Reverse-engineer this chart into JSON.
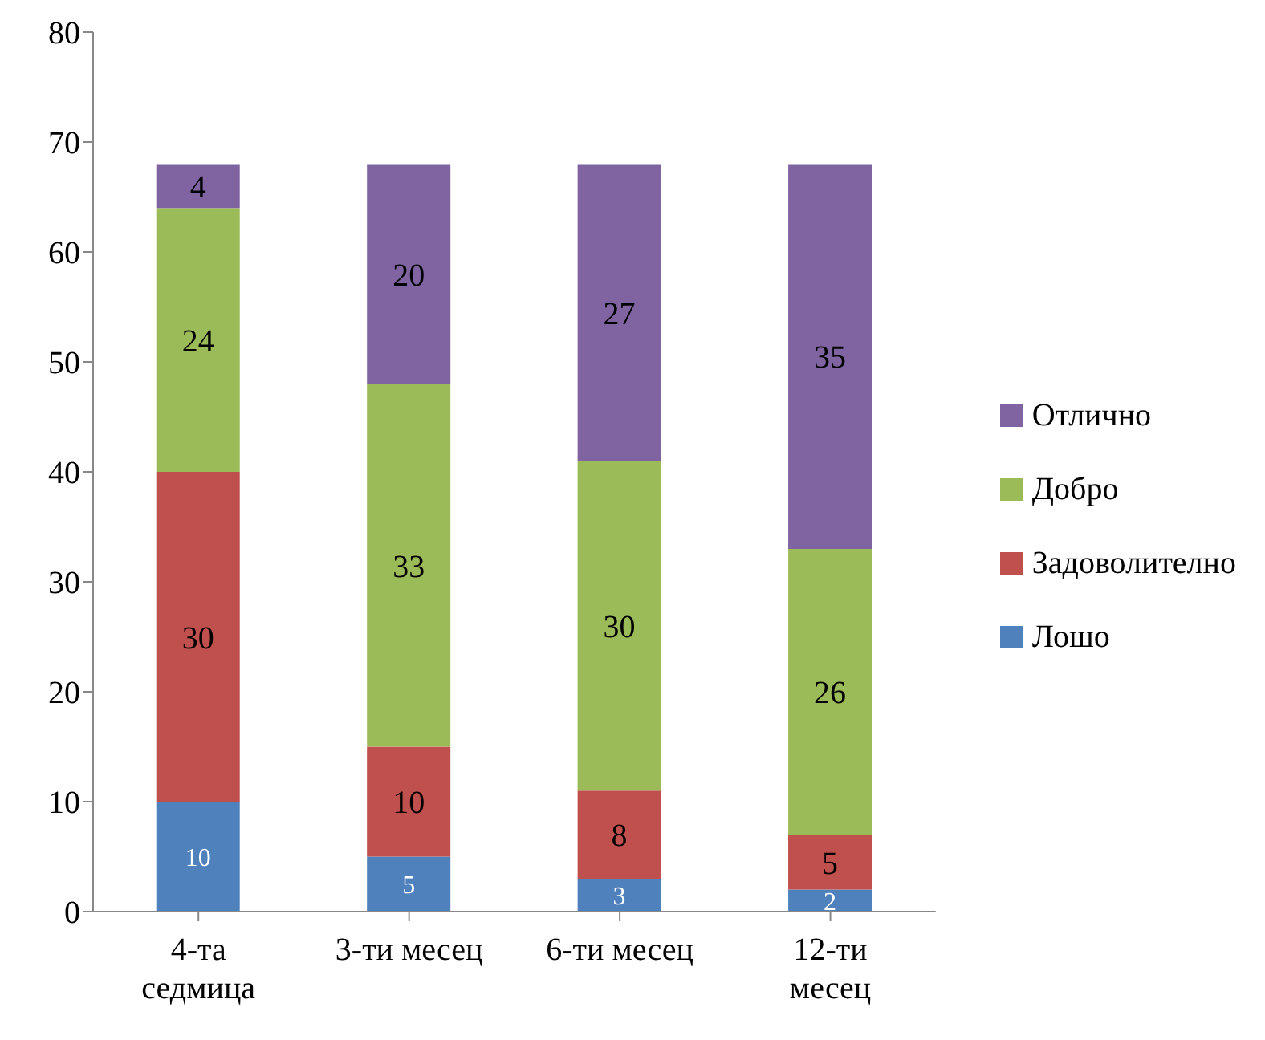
{
  "chart_data": {
    "type": "bar",
    "stacked": true,
    "categories": [
      "4-та седмица",
      "3-ти месец",
      "6-ти месец",
      "12-ти месец"
    ],
    "series": [
      {
        "name": "Лошо",
        "color": "#4f81bd",
        "values": [
          10,
          5,
          3,
          2
        ]
      },
      {
        "name": "Задоволително",
        "color": "#c0504d",
        "values": [
          30,
          10,
          8,
          5
        ]
      },
      {
        "name": "Добро",
        "color": "#9bbb59",
        "values": [
          24,
          33,
          30,
          26
        ]
      },
      {
        "name": "Отлично",
        "color": "#8064a2",
        "values": [
          4,
          20,
          27,
          35
        ]
      }
    ],
    "ylim": [
      0,
      80
    ],
    "yticks": [
      0,
      10,
      20,
      30,
      40,
      50,
      60,
      70,
      80
    ],
    "grid": false,
    "legend": "right",
    "data_labels": true
  }
}
